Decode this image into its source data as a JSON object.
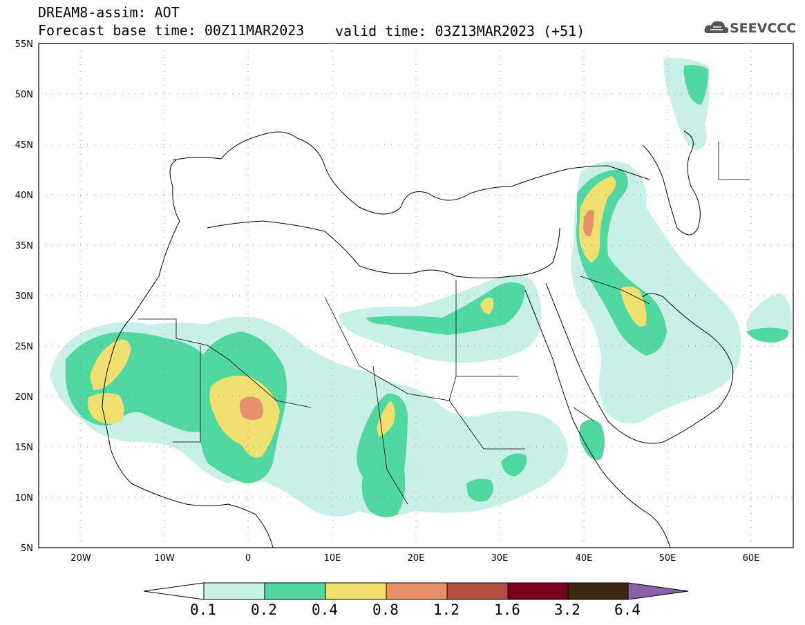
{
  "header": {
    "title_line1": "DREAM8-assim: AOT",
    "title_line2": "Forecast base time: 00Z11MAR2023",
    "valid_time": "valid time: 03Z13MAR2023 (+51)",
    "logo_text": "SEEVCCC"
  },
  "axes": {
    "lat_labels": [
      "55N",
      "50N",
      "45N",
      "40N",
      "35N",
      "30N",
      "25N",
      "20N",
      "15N",
      "10N",
      "5N"
    ],
    "lon_labels": [
      "20W",
      "10W",
      "0",
      "10E",
      "20E",
      "30E",
      "40E",
      "50E",
      "60E"
    ]
  },
  "colorbar": {
    "labels": [
      "0.1",
      "0.2",
      "0.4",
      "0.8",
      "1.2",
      "1.6",
      "3.2",
      "6.4"
    ],
    "colors": [
      "#c8f0e8",
      "#50d8a0",
      "#f0e070",
      "#e8906a",
      "#b05040",
      "#780020",
      "#3c2810",
      "#8860a8"
    ]
  },
  "colors": {
    "c1": "#c8f0e8",
    "c2": "#50d8a0",
    "c3": "#f0e070",
    "c4": "#e8906a"
  }
}
